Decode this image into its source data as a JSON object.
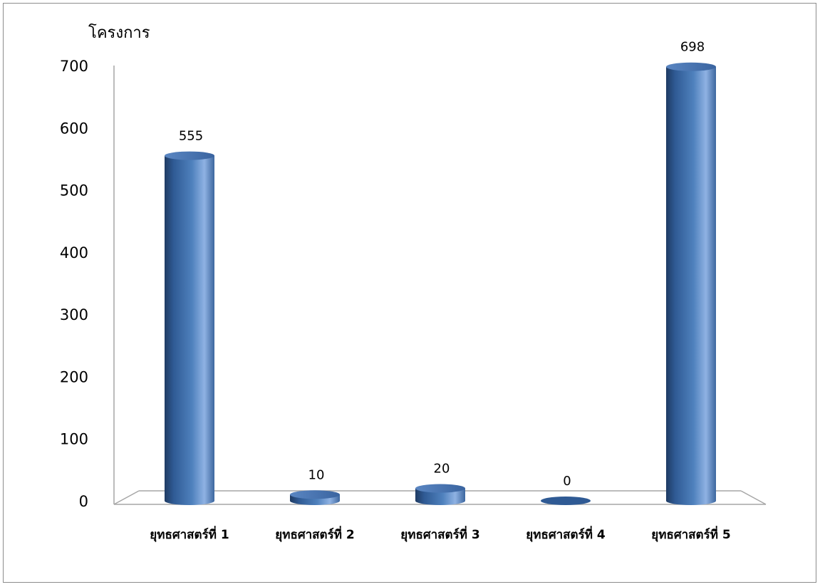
{
  "chart_data": {
    "type": "bar",
    "ylabel": "โครงการ",
    "categories": [
      "ยุทธศาสตร์ที่ 1",
      "ยุทธศาสตร์ที่ 2",
      "ยุทธศาสตร์ที่ 3",
      "ยุทธศาสตร์ที่ 4",
      "ยุทธศาสตร์ที่ 5"
    ],
    "values": [
      555,
      10,
      20,
      0,
      698
    ],
    "data_labels": [
      "555",
      "10",
      "20",
      "0",
      "698"
    ],
    "ylim": [
      0,
      700
    ],
    "yticks": [
      0,
      100,
      200,
      300,
      400,
      500,
      600,
      700
    ],
    "grid": false,
    "legend": false,
    "style": "3d-cylinder",
    "colors": {
      "bar": "#4f81bd",
      "bar_dark": "#1f3b63",
      "bar_light": "#8fb2e3",
      "axis": "#a6a6a6"
    }
  }
}
